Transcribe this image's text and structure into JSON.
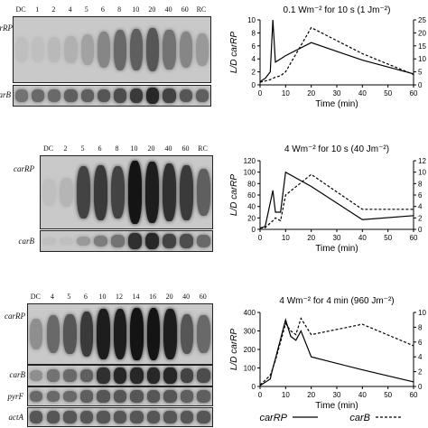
{
  "panels": [
    {
      "lanes": [
        "DC",
        "1",
        "2",
        "4",
        "5",
        "6",
        "8",
        "10",
        "20",
        "40",
        "60",
        "RC"
      ],
      "rows": [
        {
          "label": "carRP",
          "intensity": [
            0.05,
            0.05,
            0.08,
            0.12,
            0.2,
            0.35,
            0.5,
            0.55,
            0.6,
            0.45,
            0.35,
            0.25
          ]
        },
        {
          "label": "carB",
          "intensity": [
            0.45,
            0.5,
            0.5,
            0.55,
            0.55,
            0.6,
            0.65,
            0.75,
            0.85,
            0.7,
            0.6,
            0.55
          ]
        }
      ]
    },
    {
      "lanes": [
        "DC",
        "2",
        "5",
        "6",
        "8",
        "10",
        "20",
        "40",
        "60",
        "RC"
      ],
      "rows": [
        {
          "label": "carRP",
          "intensity": [
            0.05,
            0.1,
            0.7,
            0.75,
            0.7,
            0.95,
            0.9,
            0.8,
            0.75,
            0.55
          ]
        },
        {
          "label": "carB",
          "intensity": [
            0.05,
            0.05,
            0.25,
            0.4,
            0.45,
            0.8,
            0.85,
            0.7,
            0.65,
            0.5
          ]
        }
      ]
    },
    {
      "lanes": [
        "DC",
        "4",
        "5",
        "6",
        "10",
        "12",
        "14",
        "16",
        "20",
        "40",
        "60"
      ],
      "rows": [
        {
          "label": "carRP",
          "intensity": [
            0.3,
            0.5,
            0.6,
            0.75,
            0.9,
            0.9,
            0.95,
            0.95,
            0.9,
            0.6,
            0.5
          ]
        },
        {
          "label": "carB",
          "intensity": [
            0.3,
            0.45,
            0.5,
            0.55,
            0.8,
            0.85,
            0.85,
            0.85,
            0.85,
            0.7,
            0.65
          ]
        },
        {
          "label": "pyrF",
          "intensity": [
            0.5,
            0.5,
            0.5,
            0.55,
            0.6,
            0.6,
            0.6,
            0.6,
            0.6,
            0.55,
            0.55
          ]
        },
        {
          "label": "actA",
          "intensity": [
            0.6,
            0.6,
            0.6,
            0.6,
            0.6,
            0.6,
            0.6,
            0.6,
            0.6,
            0.6,
            0.6
          ]
        }
      ]
    }
  ],
  "chart_data": [
    {
      "type": "line",
      "title": "0.1 Wm⁻² for 10 s (1 Jm⁻²)",
      "xlabel": "Time (min)",
      "ylabel": "L/D carRP",
      "xlim": [
        0,
        60
      ],
      "xticks": [
        "0",
        "10",
        "20",
        "30",
        "40",
        "50",
        "60"
      ],
      "ylim_left": [
        0,
        10
      ],
      "yticks_left": [
        "0",
        "2",
        "4",
        "6",
        "8",
        "10"
      ],
      "ylim_right": [
        0,
        25
      ],
      "yticks_right": [
        "0",
        "5",
        "10",
        "15",
        "20",
        "25"
      ],
      "series": [
        {
          "name": "carRP",
          "axis": "left",
          "style": "solid",
          "x": [
            0,
            2,
            4,
            5,
            6,
            8,
            10,
            20,
            40,
            60
          ],
          "y": [
            0.5,
            1,
            2,
            10,
            3.5,
            4,
            4.5,
            6.5,
            3.8,
            1.7
          ]
        },
        {
          "name": "carB",
          "axis": "right",
          "style": "dashed",
          "x": [
            0,
            2,
            4,
            5,
            6,
            8,
            10,
            20,
            40,
            60
          ],
          "y": [
            1,
            1.5,
            2,
            2.5,
            3,
            3.5,
            5,
            22,
            12,
            4
          ]
        }
      ]
    },
    {
      "type": "line",
      "title": "4 Wm⁻² for 10 s (40 Jm⁻²)",
      "xlabel": "Time (min)",
      "ylabel": "L/D carRP",
      "xlim": [
        0,
        60
      ],
      "xticks": [
        "0",
        "10",
        "20",
        "30",
        "40",
        "50",
        "60"
      ],
      "ylim_left": [
        0,
        120
      ],
      "yticks_left": [
        "0",
        "20",
        "40",
        "60",
        "80",
        "100",
        "120"
      ],
      "ylim_right": [
        0,
        12
      ],
      "yticks_right": [
        "0",
        "2",
        "4",
        "6",
        "8",
        "10",
        "12"
      ],
      "series": [
        {
          "name": "carRP",
          "axis": "left",
          "style": "solid",
          "x": [
            0,
            2,
            5,
            6,
            8,
            10,
            20,
            40,
            60
          ],
          "y": [
            2,
            5,
            68,
            30,
            30,
            100,
            75,
            17,
            24
          ]
        },
        {
          "name": "carB",
          "axis": "right",
          "style": "dashed",
          "x": [
            0,
            2,
            5,
            6,
            8,
            10,
            20,
            40,
            60
          ],
          "y": [
            0.2,
            0.3,
            1.5,
            2,
            1.5,
            6,
            9.6,
            3.5,
            3.5
          ]
        }
      ]
    },
    {
      "type": "line",
      "title": "4 Wm⁻² for 4 min (960 Jm⁻²)",
      "xlabel": "Time (min)",
      "ylabel": "L/D carRP",
      "xlim": [
        0,
        60
      ],
      "xticks": [
        "0",
        "10",
        "20",
        "30",
        "40",
        "50",
        "60"
      ],
      "ylim_left": [
        0,
        400
      ],
      "yticks_left": [
        "0",
        "100",
        "200",
        "300",
        "400"
      ],
      "ylim_right": [
        0,
        10
      ],
      "yticks_right": [
        "0",
        "2",
        "4",
        "6",
        "8",
        "10"
      ],
      "series": [
        {
          "name": "carRP",
          "axis": "left",
          "style": "solid",
          "x": [
            0,
            4,
            5,
            6,
            10,
            12,
            14,
            16,
            20,
            40,
            60
          ],
          "y": [
            5,
            40,
            100,
            150,
            360,
            270,
            250,
            300,
            160,
            90,
            25
          ]
        },
        {
          "name": "carB",
          "axis": "right",
          "style": "dashed",
          "x": [
            0,
            4,
            5,
            6,
            10,
            12,
            14,
            16,
            20,
            40,
            60
          ],
          "y": [
            0.2,
            1.5,
            2.5,
            3.5,
            8.5,
            7.5,
            7,
            9.2,
            7,
            8.4,
            5.5
          ]
        }
      ]
    }
  ],
  "legend": {
    "items": [
      {
        "label": "carRP",
        "style": "solid"
      },
      {
        "label": "carB",
        "style": "dashed"
      }
    ]
  }
}
